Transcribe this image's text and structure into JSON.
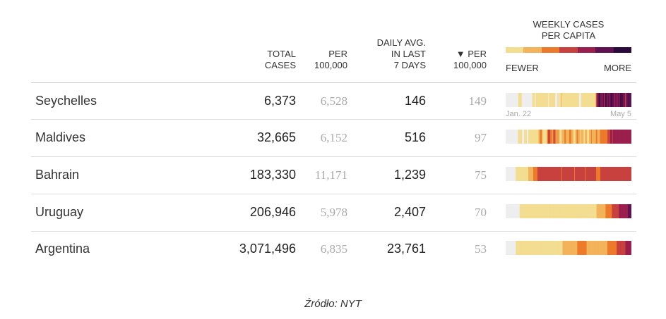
{
  "header": {
    "total_cases": [
      "TOTAL",
      "CASES"
    ],
    "per_100k": [
      "PER",
      "100,000"
    ],
    "daily_avg": [
      "DAILY AVG.",
      "IN LAST",
      "7 DAYS"
    ],
    "per_100k_sorted": [
      "▼ PER",
      "100,000"
    ],
    "weekly_title": [
      "WEEKLY CASES",
      "PER CAPITA"
    ],
    "fewer": "FEWER",
    "more": "MORE"
  },
  "scale_colors": [
    "#f3dd91",
    "#f2b35a",
    "#ec7a2a",
    "#c8413f",
    "#9b1f4d",
    "#5f1152",
    "#2a0a3d"
  ],
  "strip_axis": {
    "start": "Jan. 22",
    "end": "May 5"
  },
  "chart_data": {
    "type": "table",
    "columns": [
      "TOTAL CASES",
      "PER 100,000",
      "DAILY AVG. IN LAST 7 DAYS",
      "▼ PER 100,000",
      "WEEKLY CASES PER CAPITA"
    ],
    "rows": [
      {
        "country": "Seychelles",
        "total_cases": "6,373",
        "per_100k": "6,528",
        "daily_avg": "146",
        "daily_per_100k": "149",
        "daily_levels": [
          0,
          0,
          0,
          0,
          0,
          0,
          0,
          0,
          0,
          0,
          0,
          0,
          0,
          0,
          0,
          0,
          0,
          0,
          1,
          1,
          1,
          1,
          1,
          0,
          0,
          0,
          0,
          0,
          0,
          0,
          0,
          0,
          0,
          0,
          0,
          0,
          0,
          0,
          1,
          1,
          1,
          1,
          0,
          1,
          1,
          1,
          1,
          1,
          1,
          1,
          1,
          1,
          1,
          1,
          1,
          1,
          1,
          1,
          1,
          1,
          1,
          0,
          1,
          1,
          1,
          1,
          1,
          1,
          1,
          1,
          1,
          0,
          0,
          0,
          1,
          1,
          0,
          1,
          1,
          2,
          1,
          1,
          1,
          1,
          1,
          1,
          1,
          1,
          1,
          1,
          1,
          1,
          1,
          1,
          1,
          1,
          1,
          1,
          1,
          1,
          1,
          1,
          1,
          1,
          1,
          0,
          0,
          0,
          1,
          1,
          1,
          1,
          1,
          1,
          1,
          1,
          1,
          1,
          1,
          1,
          1,
          1,
          1,
          1,
          1,
          1,
          1,
          1,
          1,
          3,
          5,
          5,
          6,
          6,
          7,
          6,
          5,
          6,
          5,
          6,
          6,
          4,
          6,
          7,
          6,
          5,
          6,
          6,
          5,
          6,
          6,
          7,
          6,
          6,
          6,
          5,
          5,
          6,
          5,
          6,
          5,
          6,
          6,
          5,
          7,
          6,
          7,
          6,
          6,
          5,
          6,
          4,
          5,
          6,
          6,
          6,
          7,
          6,
          6,
          6
        ]
      },
      {
        "country": "Maldives",
        "total_cases": "32,665",
        "per_100k": "6,152",
        "daily_avg": "516",
        "daily_per_100k": "97",
        "daily_levels": [
          0,
          0,
          0,
          0,
          0,
          0,
          0,
          0,
          0,
          0,
          0,
          0,
          0,
          0,
          0,
          0,
          0,
          0,
          1,
          1,
          1,
          1,
          1,
          1,
          0,
          0,
          0,
          1,
          1,
          1,
          1,
          0,
          0,
          1,
          1,
          1,
          1,
          1,
          1,
          1,
          1,
          1,
          1,
          1,
          1,
          1,
          1,
          1,
          2,
          2,
          3,
          3,
          3,
          2,
          1,
          1,
          1,
          1,
          1,
          1,
          2,
          3,
          4,
          4,
          4,
          3,
          3,
          3,
          2,
          3,
          4,
          4,
          3,
          3,
          2,
          2,
          3,
          2,
          2,
          1,
          1,
          1,
          2,
          2,
          2,
          2,
          3,
          3,
          2,
          2,
          2,
          2,
          2,
          3,
          3,
          3,
          2,
          2,
          2,
          1,
          1,
          1,
          2,
          2,
          3,
          3,
          2,
          2,
          2,
          1,
          2,
          2,
          2,
          2,
          1,
          1,
          2,
          2,
          2,
          1,
          1,
          1,
          2,
          2,
          2,
          3,
          2,
          2,
          2,
          2,
          2,
          2,
          3,
          3,
          2,
          2,
          2,
          2,
          3,
          3,
          3,
          3,
          3,
          3,
          3,
          3,
          3,
          3,
          3,
          4,
          4,
          4,
          4,
          5,
          5,
          5,
          4,
          5,
          5,
          5,
          5,
          5,
          5,
          5,
          5,
          5,
          5,
          5,
          5,
          5,
          5,
          5,
          5,
          5,
          5,
          5,
          5,
          5,
          5,
          5,
          5,
          5,
          5,
          5
        ]
      },
      {
        "country": "Bahrain",
        "total_cases": "183,330",
        "per_100k": "11,171",
        "daily_avg": "1,239",
        "daily_per_100k": "75",
        "daily_levels": [
          0,
          0,
          0,
          0,
          0,
          0,
          0,
          0,
          0,
          0,
          0,
          0,
          0,
          0,
          1,
          1,
          1,
          1,
          1,
          1,
          1,
          1,
          1,
          1,
          1,
          1,
          1,
          1,
          1,
          1,
          1,
          1,
          2,
          2,
          2,
          2,
          2,
          2,
          2,
          3,
          3,
          3,
          3,
          3,
          3,
          4,
          4,
          4,
          4,
          4,
          4,
          4,
          4,
          4,
          4,
          4,
          4,
          4,
          4,
          4,
          4,
          4,
          4,
          4,
          4,
          4,
          4,
          4,
          4,
          4,
          4,
          4,
          4,
          4,
          4,
          4,
          4,
          4,
          4,
          3,
          4,
          4,
          4,
          4,
          4,
          4,
          4,
          4,
          4,
          4,
          4,
          4,
          4,
          4,
          4,
          4,
          4,
          3,
          4,
          4,
          4,
          4,
          4,
          4,
          4,
          4,
          4,
          4,
          4,
          4,
          4,
          4,
          3,
          4,
          4,
          4,
          4,
          4,
          4,
          4,
          4,
          4,
          4,
          4,
          4,
          4,
          4,
          4,
          3,
          3,
          3,
          3,
          3,
          3,
          4,
          4,
          4,
          4,
          4,
          4,
          4,
          4,
          4,
          4,
          4,
          4,
          4,
          4,
          4,
          4,
          4,
          4,
          4,
          4,
          4,
          4,
          4,
          4,
          4,
          4,
          4,
          4,
          4,
          4,
          4,
          4,
          4,
          4,
          4,
          4,
          4,
          4,
          4,
          4,
          4,
          4,
          4,
          4
        ]
      },
      {
        "country": "Uruguay",
        "total_cases": "206,946",
        "per_100k": "5,978",
        "daily_avg": "2,407",
        "daily_per_100k": "70",
        "daily_levels": [
          0,
          0,
          0,
          0,
          0,
          0,
          0,
          0,
          0,
          0,
          0,
          0,
          0,
          0,
          0,
          0,
          0,
          0,
          0,
          0,
          1,
          1,
          1,
          1,
          1,
          1,
          1,
          1,
          1,
          1,
          1,
          1,
          1,
          1,
          1,
          1,
          1,
          1,
          1,
          1,
          1,
          1,
          1,
          1,
          1,
          1,
          1,
          1,
          1,
          1,
          1,
          1,
          1,
          1,
          1,
          1,
          1,
          1,
          1,
          1,
          1,
          1,
          1,
          1,
          1,
          1,
          1,
          1,
          1,
          1,
          1,
          1,
          1,
          1,
          1,
          1,
          1,
          1,
          1,
          1,
          1,
          1,
          1,
          1,
          1,
          1,
          1,
          1,
          1,
          1,
          1,
          1,
          1,
          1,
          1,
          1,
          1,
          1,
          1,
          1,
          1,
          1,
          1,
          1,
          1,
          1,
          1,
          1,
          1,
          1,
          1,
          1,
          1,
          1,
          1,
          1,
          1,
          1,
          1,
          1,
          1,
          1,
          1,
          1,
          1,
          1,
          1,
          1,
          1,
          1,
          2,
          2,
          2,
          2,
          2,
          2,
          2,
          2,
          2,
          2,
          2,
          2,
          2,
          3,
          3,
          3,
          3,
          3,
          3,
          3,
          3,
          3,
          4,
          4,
          4,
          4,
          4,
          4,
          4,
          4,
          4,
          4,
          5,
          5,
          5,
          5,
          5,
          5,
          5,
          5,
          5,
          5,
          5,
          5,
          5,
          6,
          6,
          6,
          6,
          6
        ]
      },
      {
        "country": "Argentina",
        "total_cases": "3,071,496",
        "per_100k": "6,835",
        "daily_avg": "23,761",
        "daily_per_100k": "53",
        "daily_levels": [
          0,
          0,
          0,
          0,
          0,
          0,
          0,
          0,
          0,
          0,
          0,
          0,
          0,
          0,
          0,
          1,
          1,
          1,
          1,
          1,
          1,
          1,
          1,
          1,
          1,
          1,
          1,
          1,
          1,
          1,
          1,
          1,
          1,
          1,
          1,
          1,
          1,
          1,
          1,
          1,
          1,
          1,
          1,
          1,
          1,
          1,
          1,
          1,
          1,
          1,
          1,
          1,
          1,
          1,
          1,
          1,
          1,
          1,
          1,
          1,
          1,
          1,
          1,
          1,
          1,
          1,
          1,
          1,
          1,
          1,
          1,
          1,
          1,
          1,
          1,
          1,
          1,
          1,
          1,
          1,
          1,
          1,
          1,
          1,
          1,
          2,
          2,
          2,
          2,
          2,
          2,
          2,
          2,
          2,
          2,
          2,
          2,
          2,
          2,
          2,
          2,
          2,
          2,
          2,
          2,
          2,
          2,
          3,
          3,
          3,
          3,
          3,
          3,
          3,
          3,
          3,
          3,
          3,
          3,
          3,
          3,
          2,
          2,
          2,
          2,
          2,
          2,
          2,
          2,
          2,
          2,
          2,
          2,
          2,
          2,
          2,
          2,
          2,
          2,
          2,
          2,
          2,
          2,
          2,
          2,
          2,
          2,
          2,
          2,
          2,
          2,
          2,
          3,
          3,
          3,
          3,
          3,
          3,
          3,
          3,
          3,
          3,
          3,
          3,
          3,
          3,
          4,
          4,
          4,
          4,
          4,
          4,
          4,
          4,
          4,
          4,
          4,
          4,
          4,
          5,
          5,
          5,
          5,
          5,
          5,
          5,
          5,
          5
        ]
      }
    ]
  },
  "source": "Źródło: NYT"
}
